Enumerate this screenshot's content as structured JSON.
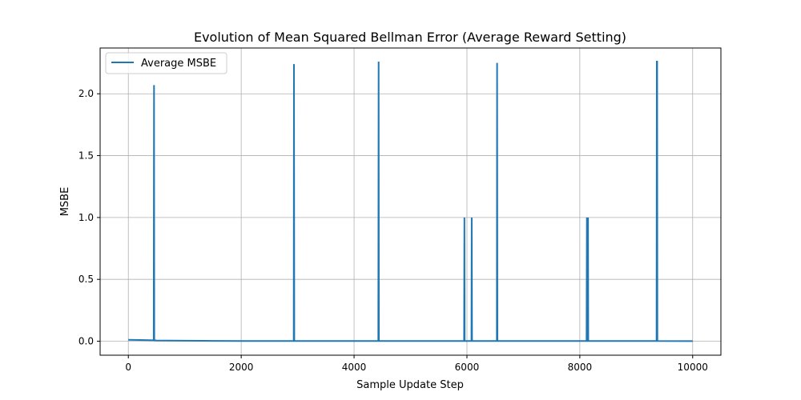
{
  "chart_data": {
    "type": "line",
    "title": "Evolution of Mean Squared Bellman Error (Average Reward Setting)",
    "xlabel": "Sample Update Step",
    "ylabel": "MSBE",
    "xlim": [
      -500,
      10500
    ],
    "ylim": [
      -0.113,
      2.37
    ],
    "x_ticks": [
      0,
      2000,
      4000,
      6000,
      8000,
      10000
    ],
    "x_tick_labels": [
      "0",
      "2000",
      "4000",
      "6000",
      "8000",
      "10000"
    ],
    "y_ticks": [
      0.0,
      0.5,
      1.0,
      1.5,
      2.0
    ],
    "y_tick_labels": [
      "0.0",
      "0.5",
      "1.0",
      "1.5",
      "2.0"
    ],
    "grid": true,
    "legend_position": "top-left",
    "series": [
      {
        "name": "Average MSBE",
        "color": "#1f77b4",
        "x": [
          0,
          300,
          450,
          455,
          460,
          500,
          1000,
          1500,
          2000,
          2930,
          2935,
          2940,
          4430,
          4435,
          4440,
          5950,
          5955,
          5960,
          6080,
          6085,
          6090,
          6530,
          6535,
          6540,
          8120,
          8125,
          8130,
          8140,
          8145,
          8150,
          9360,
          9365,
          9370,
          9375,
          10000
        ],
        "y": [
          0.012,
          0.009,
          0.007,
          2.07,
          0.007,
          0.006,
          0.004,
          0.003,
          0.002,
          0.002,
          2.24,
          0.002,
          0.002,
          2.26,
          0.002,
          0.002,
          1.0,
          0.002,
          0.002,
          1.0,
          0.002,
          0.002,
          2.25,
          0.002,
          0.002,
          1.0,
          0.002,
          0.002,
          1.0,
          0.002,
          0.002,
          2.26,
          2.26,
          0.002,
          0.001
        ]
      }
    ]
  }
}
